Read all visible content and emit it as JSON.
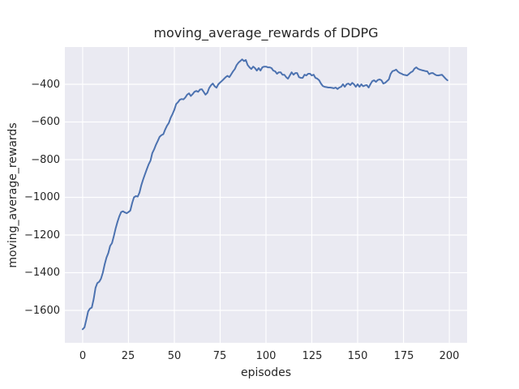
{
  "chart_data": {
    "type": "line",
    "title": "moving_average_rewards of DDPG",
    "xlabel": "episodes",
    "ylabel": "moving_average_rewards",
    "grid": true,
    "legend_position": "none",
    "x_start": 0,
    "x_step": 1,
    "xlim": [
      -9.7,
      209.7
    ],
    "ylim": [
      -1772,
      -202
    ],
    "xticks": [
      0,
      25,
      50,
      75,
      100,
      125,
      150,
      175,
      200
    ],
    "xtick_labels": [
      "0",
      "25",
      "50",
      "75",
      "100",
      "125",
      "150",
      "175",
      "200"
    ],
    "yticks": [
      -400,
      -600,
      -800,
      -1000,
      -1200,
      -1400,
      -1600
    ],
    "ytick_labels": [
      "−400",
      "−600",
      "−800",
      "−1000",
      "−1200",
      "−1400",
      "−1600"
    ],
    "colors": {
      "line": "#4c72b0",
      "plot_background": "#eaeaf2",
      "grid": "#ffffff",
      "text": "#262626",
      "figure_background": "#ffffff"
    },
    "values": [
      -1700,
      -1690,
      -1648,
      -1605,
      -1590,
      -1585,
      -1540,
      -1480,
      -1455,
      -1448,
      -1432,
      -1400,
      -1355,
      -1320,
      -1295,
      -1258,
      -1243,
      -1205,
      -1165,
      -1130,
      -1101,
      -1078,
      -1074,
      -1080,
      -1084,
      -1078,
      -1070,
      -1030,
      -1000,
      -993,
      -996,
      -975,
      -935,
      -905,
      -877,
      -850,
      -825,
      -805,
      -765,
      -745,
      -720,
      -700,
      -678,
      -670,
      -665,
      -640,
      -620,
      -605,
      -578,
      -558,
      -535,
      -505,
      -495,
      -482,
      -478,
      -480,
      -470,
      -455,
      -448,
      -462,
      -452,
      -440,
      -435,
      -440,
      -428,
      -426,
      -440,
      -455,
      -445,
      -420,
      -405,
      -396,
      -410,
      -418,
      -400,
      -390,
      -382,
      -372,
      -362,
      -355,
      -362,
      -348,
      -332,
      -319,
      -298,
      -285,
      -276,
      -268,
      -277,
      -271,
      -298,
      -310,
      -319,
      -306,
      -314,
      -327,
      -314,
      -327,
      -310,
      -306,
      -306,
      -310,
      -310,
      -314,
      -327,
      -331,
      -344,
      -336,
      -336,
      -349,
      -349,
      -362,
      -370,
      -353,
      -336,
      -349,
      -340,
      -340,
      -362,
      -366,
      -366,
      -349,
      -353,
      -344,
      -344,
      -353,
      -349,
      -366,
      -370,
      -379,
      -396,
      -409,
      -413,
      -415,
      -417,
      -417,
      -419,
      -421,
      -417,
      -425,
      -417,
      -413,
      -400,
      -413,
      -399,
      -396,
      -404,
      -392,
      -400,
      -413,
      -400,
      -413,
      -400,
      -410,
      -406,
      -404,
      -417,
      -398,
      -383,
      -379,
      -387,
      -377,
      -374,
      -379,
      -396,
      -392,
      -383,
      -374,
      -345,
      -330,
      -327,
      -322,
      -333,
      -340,
      -344,
      -349,
      -351,
      -353,
      -345,
      -336,
      -331,
      -317,
      -310,
      -318,
      -322,
      -325,
      -327,
      -330,
      -331,
      -346,
      -341,
      -340,
      -347,
      -352,
      -353,
      -351,
      -349,
      -360,
      -370,
      -379
    ]
  }
}
